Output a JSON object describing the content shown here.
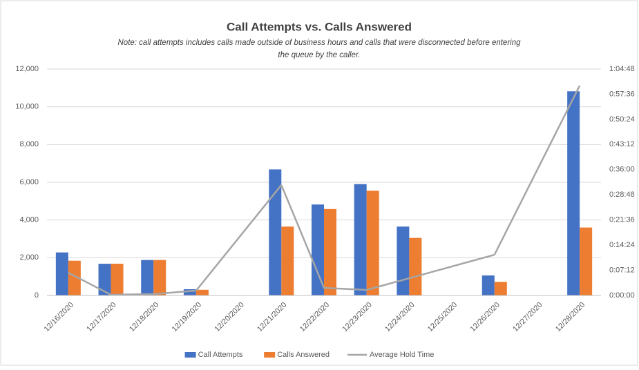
{
  "chart_data": {
    "type": "bar-line",
    "title": "Call Attempts vs. Calls Answered",
    "note_lines": [
      "Note: call attempts includes calls made outside of business hours and calls that were disconnected before entering",
      "the queue by the caller."
    ],
    "categories": [
      "12/16/2020",
      "12/17/2020",
      "12/18/2020",
      "12/19/2020",
      "12/20/2020",
      "12/21/2020",
      "12/22/2020",
      "12/23/2020",
      "12/24/2020",
      "12/25/2020",
      "12/26/2020",
      "12/27/2020",
      "12/28/2020"
    ],
    "series": [
      {
        "name": "Call Attempts",
        "type": "bar",
        "color": "#4472c4",
        "values": [
          2280,
          1680,
          1880,
          330,
          null,
          6680,
          4820,
          5900,
          3650,
          null,
          1060,
          null,
          10820
        ]
      },
      {
        "name": "Calls Answered",
        "type": "bar",
        "color": "#ed7d31",
        "values": [
          1840,
          1680,
          1880,
          300,
          null,
          3650,
          4580,
          5550,
          3050,
          null,
          720,
          null,
          3600
        ]
      },
      {
        "name": "Average Hold Time",
        "type": "line",
        "axis": "y2",
        "color": "#a5a5a5",
        "span_gaps": true,
        "values": [
          391,
          12,
          24,
          83,
          null,
          1897,
          130,
          95,
          296,
          null,
          699,
          null,
          3603
        ]
      }
    ],
    "ylim": [
      0,
      12000
    ],
    "yticks": [
      0,
      {
        "value": 2000,
        "label": "2,000"
      },
      {
        "value": 4000,
        "label": "4,000"
      },
      {
        "value": 6000,
        "label": "6,000"
      },
      {
        "value": 8000,
        "label": "8,000"
      },
      {
        "value": 10000,
        "label": "10,000"
      },
      {
        "value": 12000,
        "label": "12,000"
      }
    ],
    "y2lim": [
      0,
      3888
    ],
    "y2ticks": [
      {
        "value": 0,
        "label": "0:00:00"
      },
      {
        "value": 432,
        "label": "0:07:12"
      },
      {
        "value": 864,
        "label": "0:14:24"
      },
      {
        "value": 1296,
        "label": "0:21:36"
      },
      {
        "value": 1728,
        "label": "0:28:48"
      },
      {
        "value": 2160,
        "label": "0:36:00"
      },
      {
        "value": 2592,
        "label": "0:43:12"
      },
      {
        "value": 3024,
        "label": "0:50:24"
      },
      {
        "value": 3456,
        "label": "0:57:36"
      },
      {
        "value": 3888,
        "label": "1:04:48"
      }
    ],
    "grid": true,
    "legend": "bottom"
  }
}
